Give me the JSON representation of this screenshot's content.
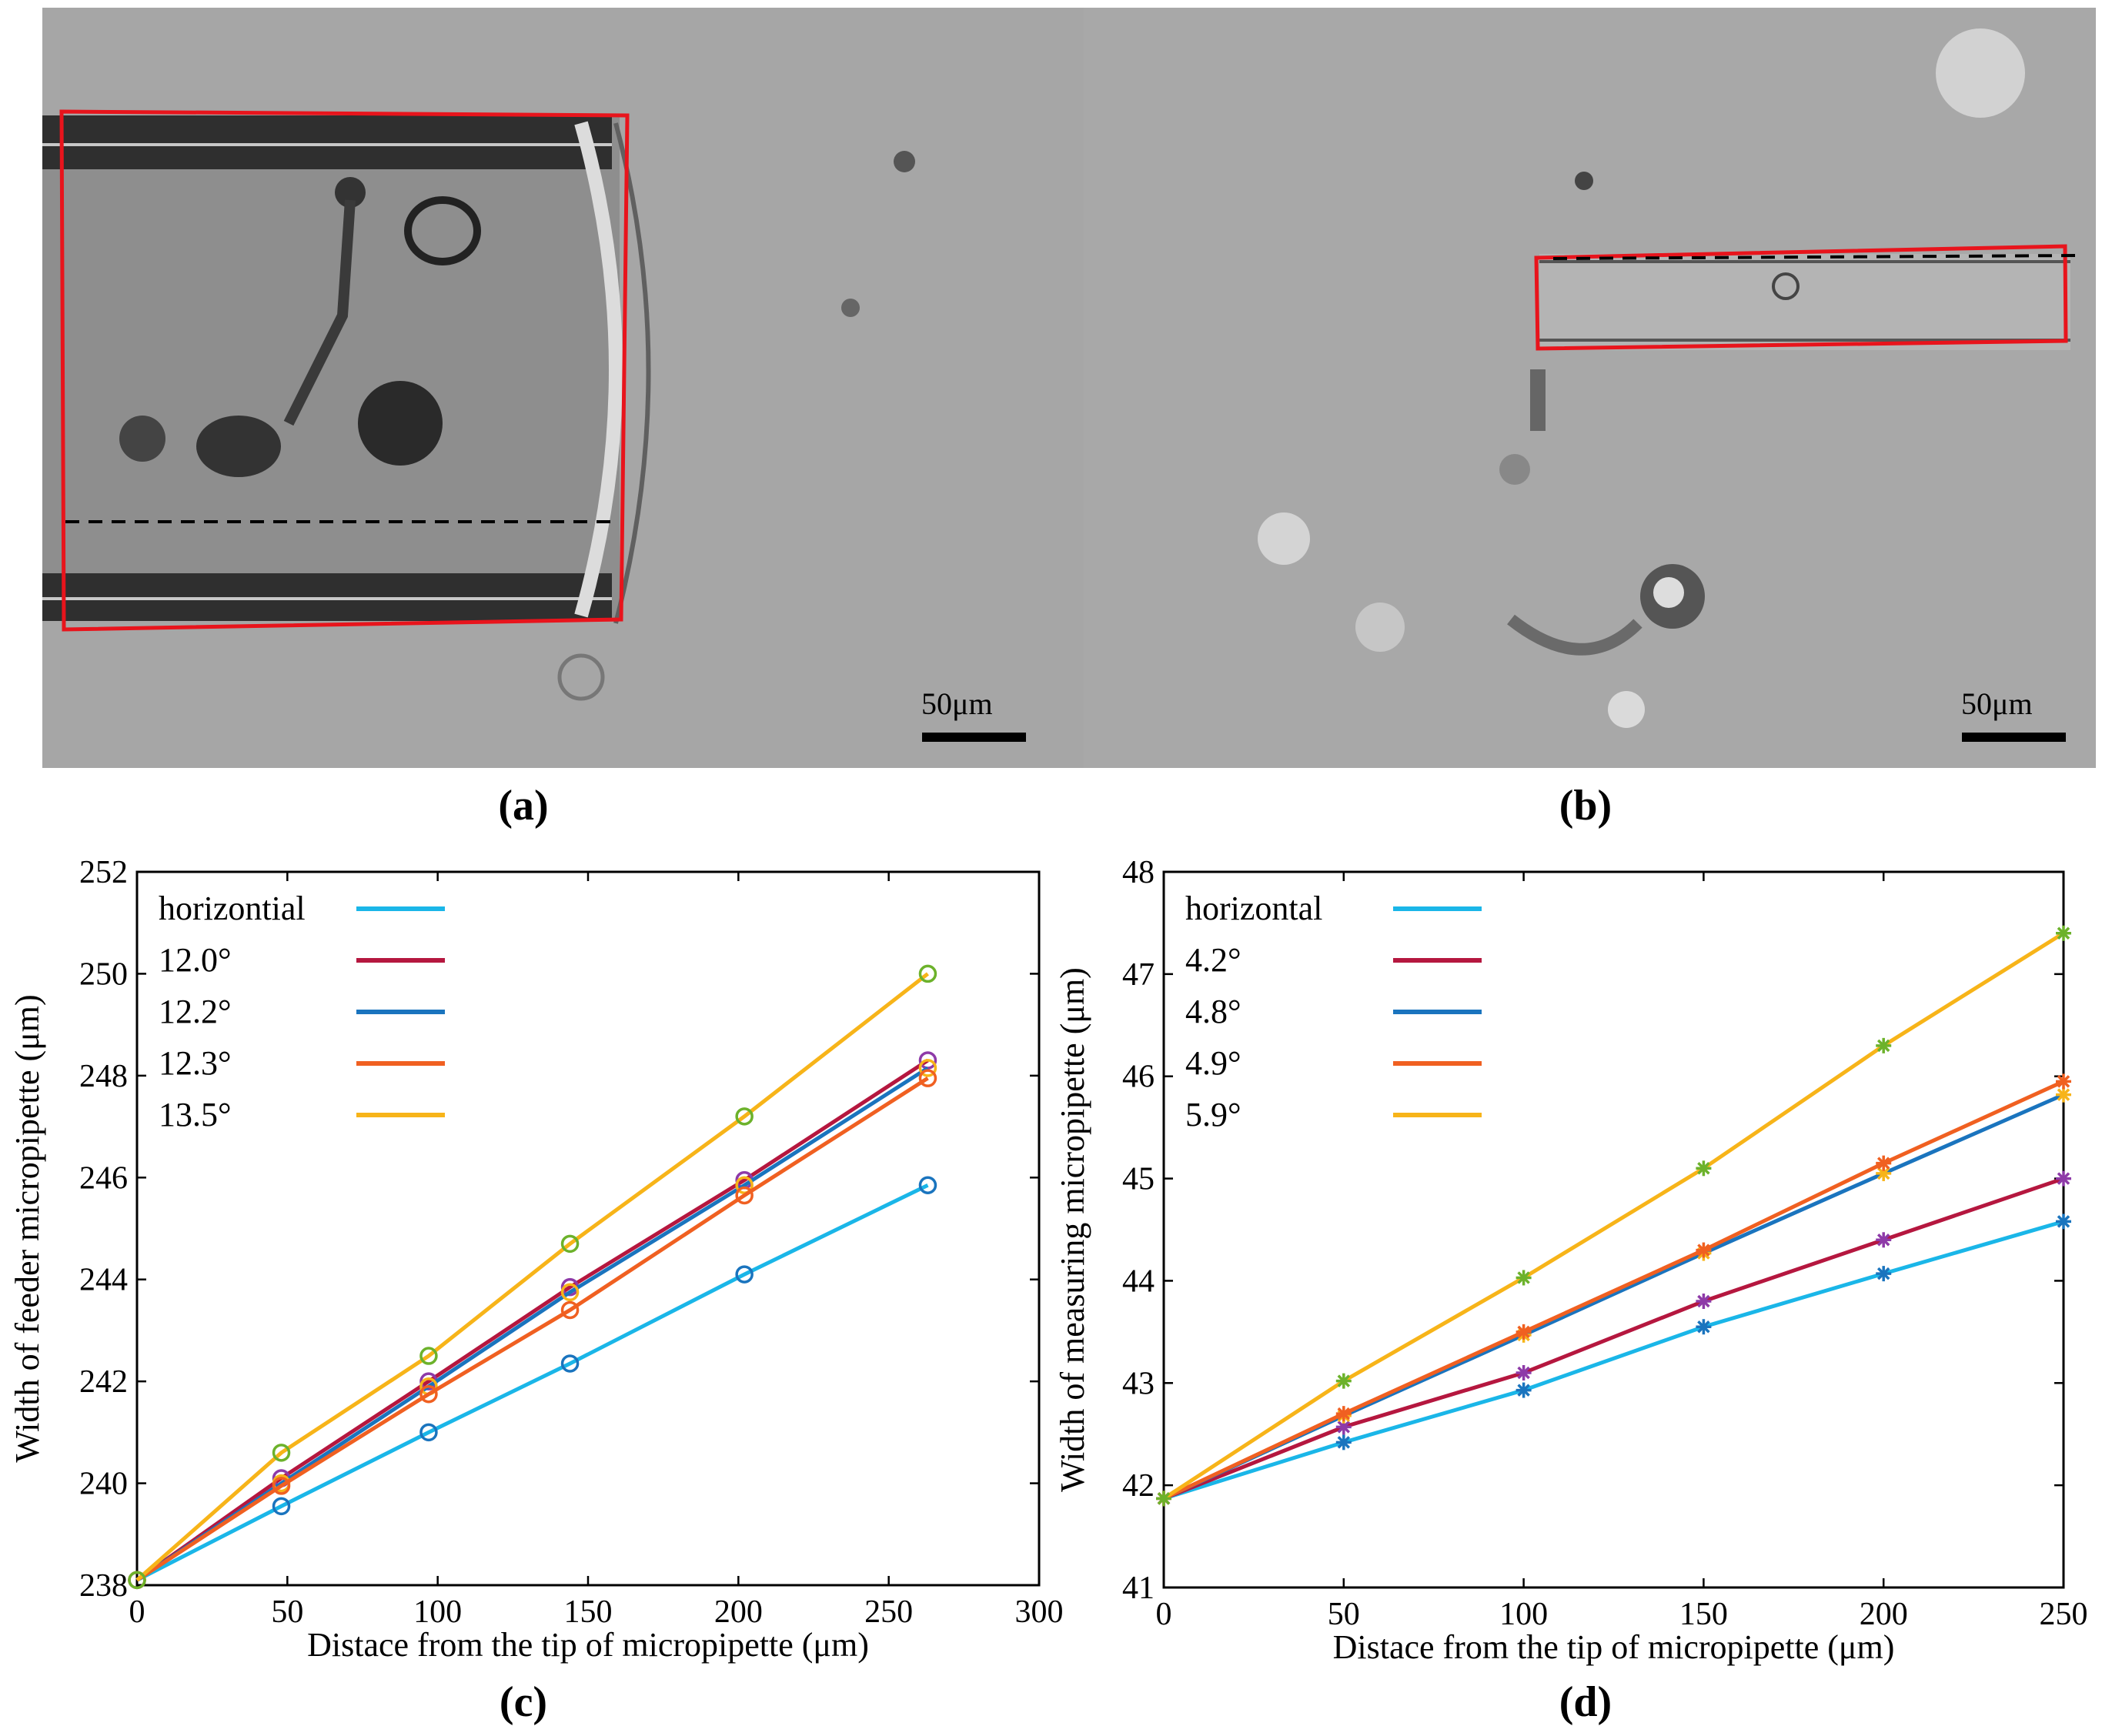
{
  "panels": {
    "a": {
      "label": "(a)",
      "scalebar": "50μm"
    },
    "b": {
      "label": "(b)",
      "scalebar": "50μm"
    },
    "c": {
      "label": "(c)"
    },
    "d": {
      "label": "(d)"
    }
  },
  "colors": {
    "horizontal": "#1ab6e8",
    "s1": "#b5173f",
    "s2": "#1a74be",
    "s3": "#f06021",
    "s4": "#f7b419",
    "marker_green": "#6cb22b",
    "marker_purple": "#8e3aa8",
    "red_box": "#e8141c"
  },
  "chart_data": [
    {
      "type": "line",
      "xlabel": "Distace from the tip of micropipette (μm)",
      "ylabel": "Width of feeder micropipette (μm)",
      "xlim": [
        0,
        300
      ],
      "ylim": [
        238,
        252
      ],
      "xticks": [
        0,
        50,
        100,
        150,
        200,
        250,
        300
      ],
      "yticks": [
        238,
        240,
        242,
        244,
        246,
        248,
        250,
        252
      ],
      "marker": "circle",
      "legend_position": "top-left",
      "x": [
        0,
        48,
        97,
        144,
        202,
        263
      ],
      "series": [
        {
          "name": "horizontial",
          "color_key": "horizontal",
          "values": [
            238.1,
            239.55,
            241.0,
            242.35,
            244.1,
            245.85
          ]
        },
        {
          "name": "12.0°",
          "color_key": "s1",
          "values": [
            238.1,
            240.1,
            242.0,
            243.85,
            245.95,
            248.3
          ]
        },
        {
          "name": "12.2°",
          "color_key": "s2",
          "values": [
            238.1,
            240.0,
            241.9,
            243.75,
            245.85,
            248.15
          ]
        },
        {
          "name": "12.3°",
          "color_key": "s3",
          "values": [
            238.1,
            239.95,
            241.75,
            243.4,
            245.65,
            247.95
          ]
        },
        {
          "name": "13.5°",
          "color_key": "s4",
          "values": [
            238.1,
            240.6,
            242.5,
            244.7,
            247.2,
            250.0
          ]
        }
      ]
    },
    {
      "type": "line",
      "xlabel": "Distace from the tip of micropipette (μm)",
      "ylabel": "Width of measuring micropipette (μm)",
      "xlim": [
        0,
        250
      ],
      "ylim": [
        41,
        48
      ],
      "xticks": [
        0,
        50,
        100,
        150,
        200,
        250
      ],
      "yticks": [
        41,
        42,
        43,
        44,
        45,
        46,
        47,
        48
      ],
      "marker": "asterisk",
      "legend_position": "top-left",
      "x": [
        0,
        50,
        100,
        150,
        200,
        250
      ],
      "series": [
        {
          "name": "horizontal",
          "color_key": "horizontal",
          "values": [
            41.87,
            42.42,
            42.93,
            43.55,
            44.07,
            44.58
          ]
        },
        {
          "name": "4.2°",
          "color_key": "s1",
          "values": [
            41.87,
            42.57,
            43.1,
            43.8,
            44.4,
            45.0
          ]
        },
        {
          "name": "4.8°",
          "color_key": "s2",
          "values": [
            41.87,
            42.68,
            43.47,
            44.27,
            45.05,
            45.82
          ]
        },
        {
          "name": "4.9°",
          "color_key": "s3",
          "values": [
            41.87,
            42.7,
            43.5,
            44.3,
            45.15,
            45.95
          ]
        },
        {
          "name": "5.9°",
          "color_key": "s4",
          "values": [
            41.87,
            43.02,
            44.03,
            45.1,
            46.3,
            47.4
          ]
        }
      ]
    }
  ]
}
